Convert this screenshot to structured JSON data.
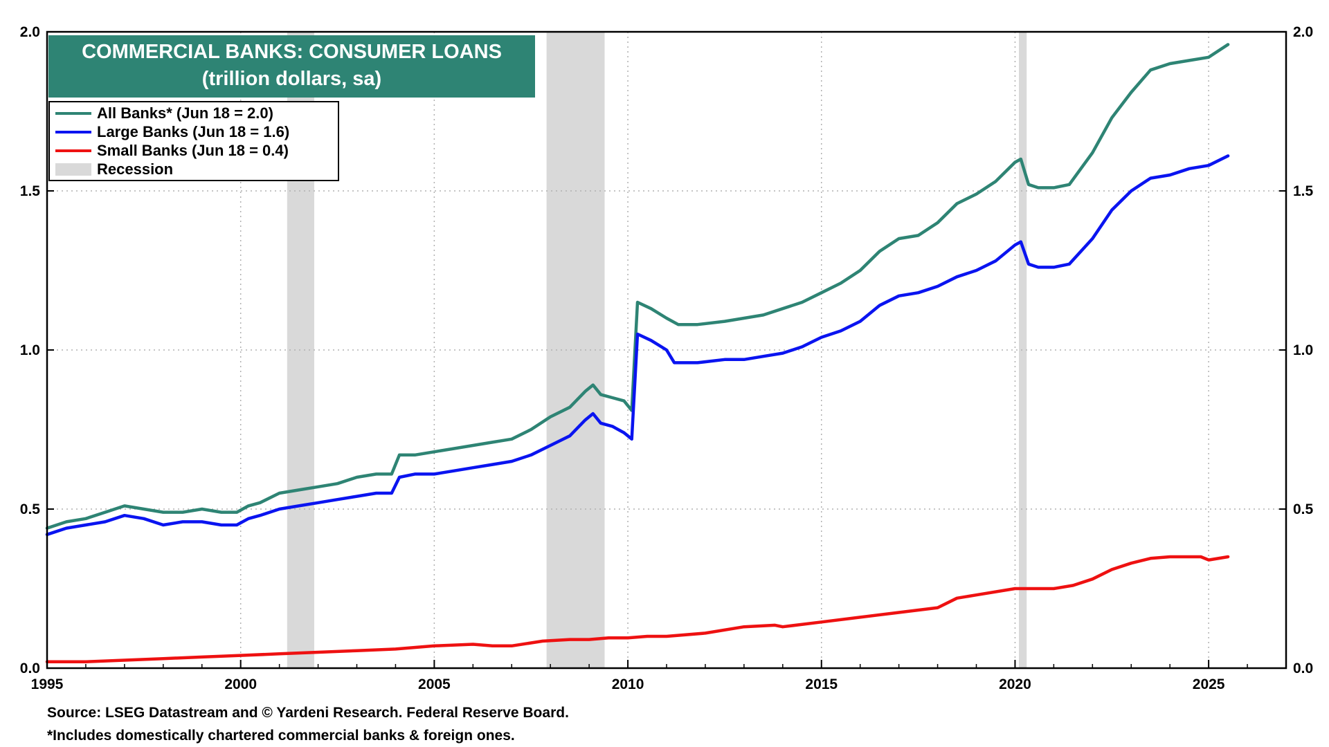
{
  "chart_data": {
    "type": "line",
    "title": "COMMERCIAL BANKS: CONSUMER LOANS",
    "subtitle": "(trillion dollars, sa)",
    "xlabel": "",
    "ylabel": "",
    "xlim": [
      1995,
      2027
    ],
    "ylim": [
      0,
      2.0
    ],
    "x_ticks": [
      1995,
      2000,
      2005,
      2010,
      2015,
      2020,
      2025
    ],
    "y_ticks": [
      0.0,
      0.5,
      1.0,
      1.5,
      2.0
    ],
    "y_tick_labels": [
      "0.0",
      "0.5",
      "1.0",
      "1.5",
      "2.0"
    ],
    "grid": true,
    "legend_position": "top-left",
    "recessions": [
      {
        "start": 2001.2,
        "end": 2001.9
      },
      {
        "start": 2007.9,
        "end": 2009.4
      },
      {
        "start": 2020.1,
        "end": 2020.3
      }
    ],
    "series": [
      {
        "name": "All Banks* (Jun 18 = 2.0)",
        "color": "#2e8474",
        "points": [
          [
            1995.0,
            0.44
          ],
          [
            1995.5,
            0.46
          ],
          [
            1996.0,
            0.47
          ],
          [
            1996.5,
            0.49
          ],
          [
            1997.0,
            0.51
          ],
          [
            1997.5,
            0.5
          ],
          [
            1998.0,
            0.49
          ],
          [
            1998.5,
            0.49
          ],
          [
            1999.0,
            0.5
          ],
          [
            1999.5,
            0.49
          ],
          [
            1999.9,
            0.49
          ],
          [
            2000.2,
            0.51
          ],
          [
            2000.5,
            0.52
          ],
          [
            2001.0,
            0.55
          ],
          [
            2001.5,
            0.56
          ],
          [
            2002.0,
            0.57
          ],
          [
            2002.5,
            0.58
          ],
          [
            2003.0,
            0.6
          ],
          [
            2003.5,
            0.61
          ],
          [
            2003.9,
            0.61
          ],
          [
            2004.1,
            0.67
          ],
          [
            2004.5,
            0.67
          ],
          [
            2005.0,
            0.68
          ],
          [
            2005.5,
            0.69
          ],
          [
            2006.0,
            0.7
          ],
          [
            2006.5,
            0.71
          ],
          [
            2007.0,
            0.72
          ],
          [
            2007.5,
            0.75
          ],
          [
            2008.0,
            0.79
          ],
          [
            2008.5,
            0.82
          ],
          [
            2008.9,
            0.87
          ],
          [
            2009.1,
            0.89
          ],
          [
            2009.3,
            0.86
          ],
          [
            2009.6,
            0.85
          ],
          [
            2009.9,
            0.84
          ],
          [
            2010.1,
            0.81
          ],
          [
            2010.25,
            1.15
          ],
          [
            2010.6,
            1.13
          ],
          [
            2011.0,
            1.1
          ],
          [
            2011.3,
            1.08
          ],
          [
            2011.8,
            1.08
          ],
          [
            2012.5,
            1.09
          ],
          [
            2013.0,
            1.1
          ],
          [
            2013.5,
            1.11
          ],
          [
            2014.0,
            1.13
          ],
          [
            2014.5,
            1.15
          ],
          [
            2015.0,
            1.18
          ],
          [
            2015.5,
            1.21
          ],
          [
            2016.0,
            1.25
          ],
          [
            2016.5,
            1.31
          ],
          [
            2017.0,
            1.35
          ],
          [
            2017.5,
            1.36
          ],
          [
            2018.0,
            1.4
          ],
          [
            2018.5,
            1.46
          ],
          [
            2019.0,
            1.49
          ],
          [
            2019.5,
            1.53
          ],
          [
            2020.0,
            1.59
          ],
          [
            2020.15,
            1.6
          ],
          [
            2020.35,
            1.52
          ],
          [
            2020.6,
            1.51
          ],
          [
            2021.0,
            1.51
          ],
          [
            2021.4,
            1.52
          ],
          [
            2022.0,
            1.62
          ],
          [
            2022.5,
            1.73
          ],
          [
            2023.0,
            1.81
          ],
          [
            2023.5,
            1.88
          ],
          [
            2024.0,
            1.9
          ],
          [
            2024.5,
            1.91
          ],
          [
            2025.0,
            1.92
          ],
          [
            2025.5,
            1.96
          ]
        ]
      },
      {
        "name": "Large Banks (Jun 18 = 1.6)",
        "color": "#0a14f0",
        "points": [
          [
            1995.0,
            0.42
          ],
          [
            1995.5,
            0.44
          ],
          [
            1996.0,
            0.45
          ],
          [
            1996.5,
            0.46
          ],
          [
            1997.0,
            0.48
          ],
          [
            1997.5,
            0.47
          ],
          [
            1998.0,
            0.45
          ],
          [
            1998.5,
            0.46
          ],
          [
            1999.0,
            0.46
          ],
          [
            1999.5,
            0.45
          ],
          [
            1999.9,
            0.45
          ],
          [
            2000.2,
            0.47
          ],
          [
            2000.5,
            0.48
          ],
          [
            2001.0,
            0.5
          ],
          [
            2001.5,
            0.51
          ],
          [
            2002.0,
            0.52
          ],
          [
            2002.5,
            0.53
          ],
          [
            2003.0,
            0.54
          ],
          [
            2003.5,
            0.55
          ],
          [
            2003.9,
            0.55
          ],
          [
            2004.1,
            0.6
          ],
          [
            2004.5,
            0.61
          ],
          [
            2005.0,
            0.61
          ],
          [
            2005.5,
            0.62
          ],
          [
            2006.0,
            0.63
          ],
          [
            2006.5,
            0.64
          ],
          [
            2007.0,
            0.65
          ],
          [
            2007.5,
            0.67
          ],
          [
            2008.0,
            0.7
          ],
          [
            2008.5,
            0.73
          ],
          [
            2008.9,
            0.78
          ],
          [
            2009.1,
            0.8
          ],
          [
            2009.3,
            0.77
          ],
          [
            2009.6,
            0.76
          ],
          [
            2009.9,
            0.74
          ],
          [
            2010.1,
            0.72
          ],
          [
            2010.25,
            1.05
          ],
          [
            2010.6,
            1.03
          ],
          [
            2011.0,
            1.0
          ],
          [
            2011.2,
            0.96
          ],
          [
            2011.8,
            0.96
          ],
          [
            2012.5,
            0.97
          ],
          [
            2013.0,
            0.97
          ],
          [
            2013.5,
            0.98
          ],
          [
            2014.0,
            0.99
          ],
          [
            2014.5,
            1.01
          ],
          [
            2015.0,
            1.04
          ],
          [
            2015.5,
            1.06
          ],
          [
            2016.0,
            1.09
          ],
          [
            2016.5,
            1.14
          ],
          [
            2017.0,
            1.17
          ],
          [
            2017.5,
            1.18
          ],
          [
            2018.0,
            1.2
          ],
          [
            2018.5,
            1.23
          ],
          [
            2019.0,
            1.25
          ],
          [
            2019.5,
            1.28
          ],
          [
            2020.0,
            1.33
          ],
          [
            2020.15,
            1.34
          ],
          [
            2020.35,
            1.27
          ],
          [
            2020.6,
            1.26
          ],
          [
            2021.0,
            1.26
          ],
          [
            2021.4,
            1.27
          ],
          [
            2022.0,
            1.35
          ],
          [
            2022.5,
            1.44
          ],
          [
            2023.0,
            1.5
          ],
          [
            2023.5,
            1.54
          ],
          [
            2024.0,
            1.55
          ],
          [
            2024.5,
            1.57
          ],
          [
            2025.0,
            1.58
          ],
          [
            2025.5,
            1.61
          ]
        ]
      },
      {
        "name": "Small Banks (Jun 18 = 0.4)",
        "color": "#ee1111",
        "points": [
          [
            1995.0,
            0.02
          ],
          [
            1996.0,
            0.02
          ],
          [
            1997.0,
            0.025
          ],
          [
            1998.0,
            0.03
          ],
          [
            1999.0,
            0.035
          ],
          [
            2000.0,
            0.04
          ],
          [
            2001.0,
            0.045
          ],
          [
            2002.0,
            0.05
          ],
          [
            2003.0,
            0.055
          ],
          [
            2004.0,
            0.06
          ],
          [
            2005.0,
            0.07
          ],
          [
            2006.0,
            0.075
          ],
          [
            2006.5,
            0.07
          ],
          [
            2007.0,
            0.07
          ],
          [
            2007.8,
            0.085
          ],
          [
            2008.5,
            0.09
          ],
          [
            2009.0,
            0.09
          ],
          [
            2009.5,
            0.095
          ],
          [
            2010.0,
            0.095
          ],
          [
            2010.5,
            0.1
          ],
          [
            2011.0,
            0.1
          ],
          [
            2012.0,
            0.11
          ],
          [
            2013.0,
            0.13
          ],
          [
            2013.8,
            0.135
          ],
          [
            2014.0,
            0.13
          ],
          [
            2015.0,
            0.145
          ],
          [
            2016.0,
            0.16
          ],
          [
            2017.0,
            0.175
          ],
          [
            2018.0,
            0.19
          ],
          [
            2018.5,
            0.22
          ],
          [
            2019.0,
            0.23
          ],
          [
            2020.0,
            0.25
          ],
          [
            2021.0,
            0.25
          ],
          [
            2021.5,
            0.26
          ],
          [
            2022.0,
            0.28
          ],
          [
            2022.5,
            0.31
          ],
          [
            2023.0,
            0.33
          ],
          [
            2023.5,
            0.345
          ],
          [
            2024.0,
            0.35
          ],
          [
            2024.8,
            0.35
          ],
          [
            2025.0,
            0.34
          ],
          [
            2025.5,
            0.35
          ]
        ]
      }
    ],
    "recession_label": "Recession",
    "recession_color": "#d9d9d9"
  },
  "footer": {
    "source": "Source: LSEG Datastream and © Yardeni Research. Federal Reserve Board.",
    "note": "*Includes domestically chartered commercial banks & foreign ones."
  }
}
